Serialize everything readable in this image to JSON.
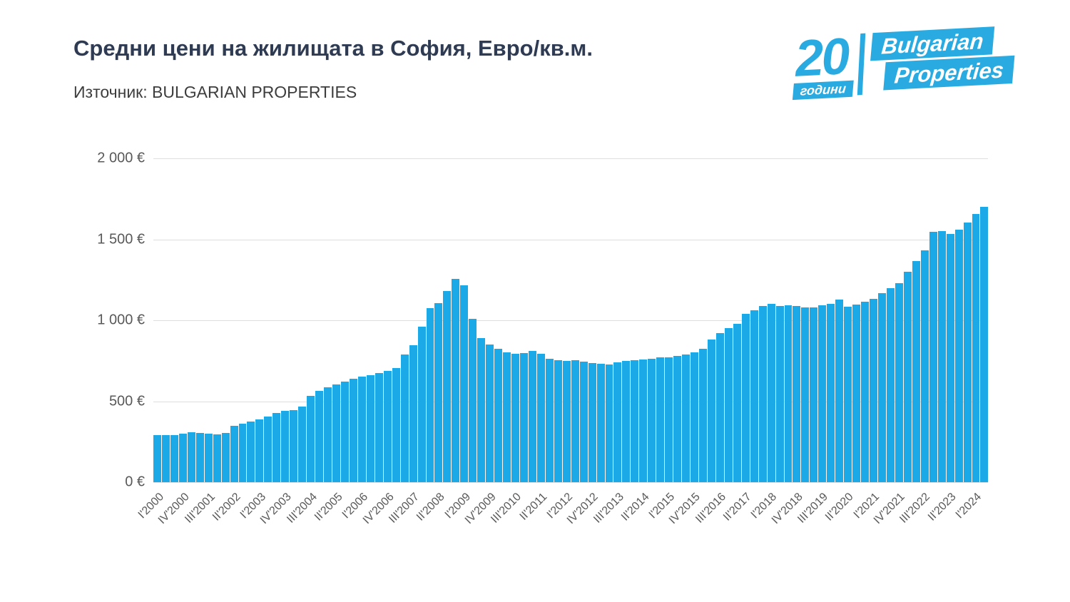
{
  "header": {
    "title": "Средни цени на жилищата в София, Евро/кв.м.",
    "source": "Източник: BULGARIAN PROPERTIES"
  },
  "logo": {
    "number": "20",
    "years_label": "години",
    "brand_line1": "Bulgarian",
    "brand_line2": "Properties",
    "color": "#29abe2"
  },
  "chart_data": {
    "type": "bar",
    "title": "Средни цени на жилищата в София, Евро/кв.м.",
    "xlabel": "",
    "ylabel": "",
    "bar_color": "#1ca9e8",
    "grid": true,
    "legend_position": "none",
    "ylim": [
      0,
      2000
    ],
    "yticks": [
      0,
      500,
      1000,
      1500,
      2000
    ],
    "ytick_labels": [
      "0 €",
      "500 €",
      "1 000 €",
      "1 500 €",
      "2 000 €"
    ],
    "xtick_step": 3,
    "categories": [
      "I'2000",
      "II'2000",
      "III'2000",
      "IV'2000",
      "I'2001",
      "II'2001",
      "III'2001",
      "IV'2001",
      "I'2002",
      "II'2002",
      "III'2002",
      "IV'2002",
      "I'2003",
      "II'2003",
      "III'2003",
      "IV'2003",
      "I'2004",
      "II'2004",
      "III'2004",
      "IV'2004",
      "I'2005",
      "II'2005",
      "III'2005",
      "IV'2005",
      "I'2006",
      "II'2006",
      "III'2006",
      "IV'2006",
      "I'2007",
      "II'2007",
      "III'2007",
      "IV'2007",
      "I'2008",
      "II'2008",
      "III'2008",
      "IV'2008",
      "I'2009",
      "II'2009",
      "III'2009",
      "IV'2009",
      "I'2010",
      "II'2010",
      "III'2010",
      "IV'2010",
      "I'2011",
      "II'2011",
      "III'2011",
      "IV'2011",
      "I'2012",
      "II'2012",
      "III'2012",
      "IV'2012",
      "I'2013",
      "II'2013",
      "III'2013",
      "IV'2013",
      "I'2014",
      "II'2014",
      "III'2014",
      "IV'2014",
      "I'2015",
      "II'2015",
      "III'2015",
      "IV'2015",
      "I'2016",
      "II'2016",
      "III'2016",
      "IV'2016",
      "I'2017",
      "II'2017",
      "III'2017",
      "IV'2017",
      "I'2018",
      "II'2018",
      "III'2018",
      "IV'2018",
      "I'2019",
      "II'2019",
      "III'2019",
      "IV'2019",
      "I'2020",
      "II'2020",
      "III'2020",
      "IV'2020",
      "I'2021",
      "II'2021",
      "III'2021",
      "IV'2021",
      "I'2022",
      "II'2022",
      "III'2022",
      "IV'2022",
      "I'2023",
      "II'2023",
      "III'2023",
      "IV'2023",
      "I'2024",
      "II'2024"
    ],
    "values": [
      290,
      293,
      289,
      300,
      310,
      302,
      299,
      296,
      303,
      350,
      362,
      375,
      386,
      405,
      426,
      440,
      446,
      466,
      532,
      562,
      585,
      605,
      622,
      640,
      652,
      663,
      673,
      686,
      706,
      790,
      846,
      962,
      1076,
      1105,
      1180,
      1256,
      1216,
      1010,
      892,
      852,
      822,
      801,
      792,
      799,
      811,
      791,
      764,
      752,
      748,
      753,
      746,
      737,
      731,
      728,
      738,
      748,
      753,
      758,
      763,
      769,
      773,
      779,
      789,
      801,
      826,
      881,
      921,
      951,
      976,
      1041,
      1062,
      1089,
      1101,
      1086,
      1093,
      1086,
      1081,
      1078,
      1092,
      1101,
      1127,
      1082,
      1096,
      1113,
      1133,
      1167,
      1197,
      1227,
      1301,
      1367,
      1433,
      1547,
      1551,
      1533,
      1559,
      1602,
      1657,
      1702
    ]
  }
}
